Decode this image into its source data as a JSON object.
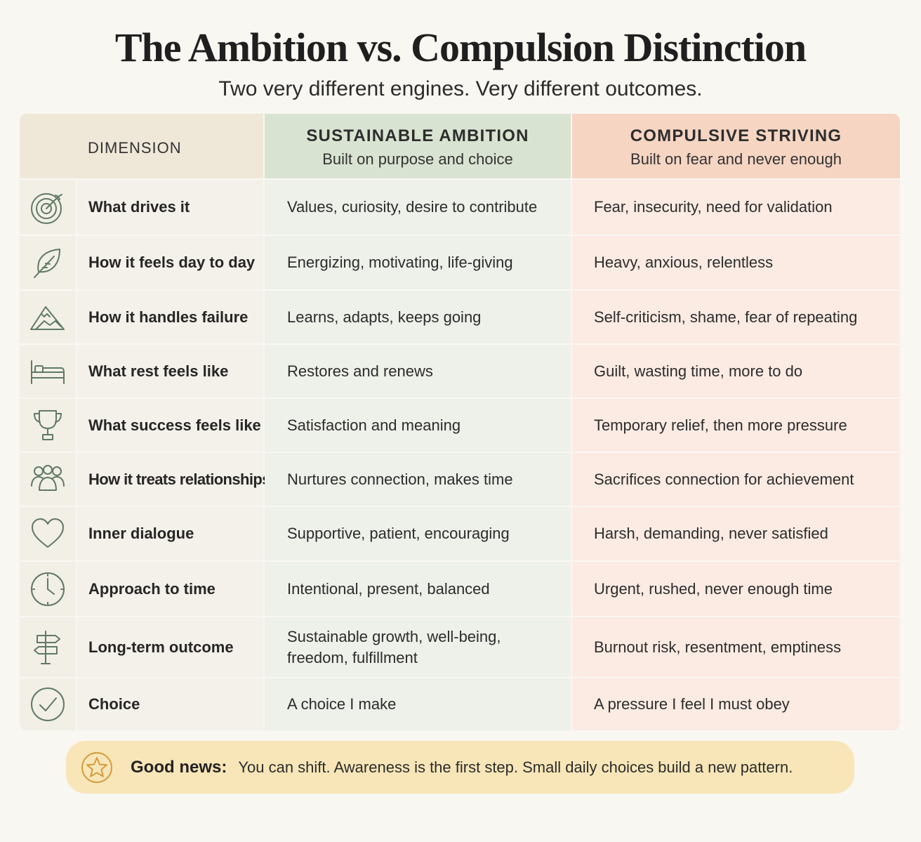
{
  "title": "The Ambition vs. Compulsion Distinction",
  "subtitle": "Two very different engines. Very different outcomes.",
  "header": {
    "dimension": "DIMENSION",
    "ambition_title": "SUSTAINABLE AMBITION",
    "ambition_sub": "Built on purpose and choice",
    "compulsion_title": "COMPULSIVE STRIVING",
    "compulsion_sub": "Built on fear and never enough"
  },
  "rows": [
    {
      "icon": "target-icon",
      "dimension": "What drives it",
      "ambition": "Values, curiosity, desire to contribute",
      "compulsion": "Fear, insecurity, need for validation"
    },
    {
      "icon": "leaf-icon",
      "dimension": "How it feels day to day",
      "ambition": "Energizing, motivating, life-giving",
      "compulsion": "Heavy, anxious, relentless"
    },
    {
      "icon": "mountain-icon",
      "dimension": "How it handles failure",
      "ambition": "Learns, adapts, keeps going",
      "compulsion": "Self-criticism, shame, fear of repeating"
    },
    {
      "icon": "bed-icon",
      "dimension": "What rest feels like",
      "ambition": "Restores and renews",
      "compulsion": "Guilt, wasting time, more to do"
    },
    {
      "icon": "trophy-icon",
      "dimension": "What success feels like",
      "ambition": "Satisfaction and meaning",
      "compulsion": "Temporary relief, then more pressure"
    },
    {
      "icon": "people-icon",
      "dimension": "How it treats relationships",
      "ambition": "Nurtures connection, makes time",
      "compulsion": "Sacrifices connection for achievement"
    },
    {
      "icon": "heart-icon",
      "dimension": "Inner dialogue",
      "ambition": "Supportive, patient, encouraging",
      "compulsion": "Harsh, demanding, never satisfied"
    },
    {
      "icon": "clock-icon",
      "dimension": "Approach to time",
      "ambition": "Intentional, present, balanced",
      "compulsion": "Urgent, rushed, never enough time"
    },
    {
      "icon": "signpost-icon",
      "dimension": "Long-term outcome",
      "ambition": "Sustainable growth, well-being, freedom, fulfillment",
      "compulsion": "Burnout risk, resentment, emptiness"
    },
    {
      "icon": "check-circle-icon",
      "dimension": "Choice",
      "ambition": "A choice I make",
      "compulsion": "A pressure I feel I must obey"
    }
  ],
  "banner": {
    "icon": "star-icon",
    "label": "Good news:",
    "text": "You can shift. Awareness is the first step. Small daily choices build a new pattern."
  },
  "colors": {
    "ambition_header": "#d9e3d2",
    "compulsion_header": "#f6d5c3",
    "banner": "#f8e6b8",
    "icon_stroke": "#5f7a63"
  }
}
